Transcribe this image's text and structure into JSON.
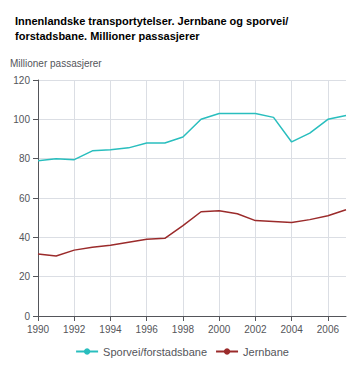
{
  "chart_data": {
    "type": "line",
    "title": "Innenlandske transportytelser. Jernbane og sporvei/\nforstadsbane. Millioner passasjerer",
    "ylabel": "Millioner passasjerer",
    "x": [
      1990,
      1991,
      1992,
      1993,
      1994,
      1995,
      1996,
      1997,
      1998,
      1999,
      2000,
      2001,
      2002,
      2003,
      2004,
      2005,
      2006,
      2007
    ],
    "series": [
      {
        "name": "Sporvei/forstadsbane",
        "color": "#29BEBE",
        "values": [
          79,
          80,
          79.5,
          84,
          84.5,
          85.5,
          88,
          88,
          91,
          100,
          103,
          103,
          103,
          101,
          88.5,
          93,
          100,
          102
        ]
      },
      {
        "name": "Jernbane",
        "color": "#9B2B2B",
        "values": [
          31.5,
          30.5,
          33.5,
          35,
          36,
          37.5,
          39,
          39.5,
          46,
          53,
          53.5,
          52,
          48.5,
          48,
          47.5,
          49,
          51,
          54
        ]
      }
    ],
    "xlim": [
      1990,
      2007
    ],
    "xticks": [
      1990,
      1992,
      1994,
      1996,
      1998,
      2000,
      2002,
      2004,
      2006
    ],
    "ylim": [
      0,
      120
    ],
    "yticks": [
      0,
      20,
      40,
      60,
      80,
      100,
      120
    ],
    "grid": true,
    "legend": "bottom"
  }
}
